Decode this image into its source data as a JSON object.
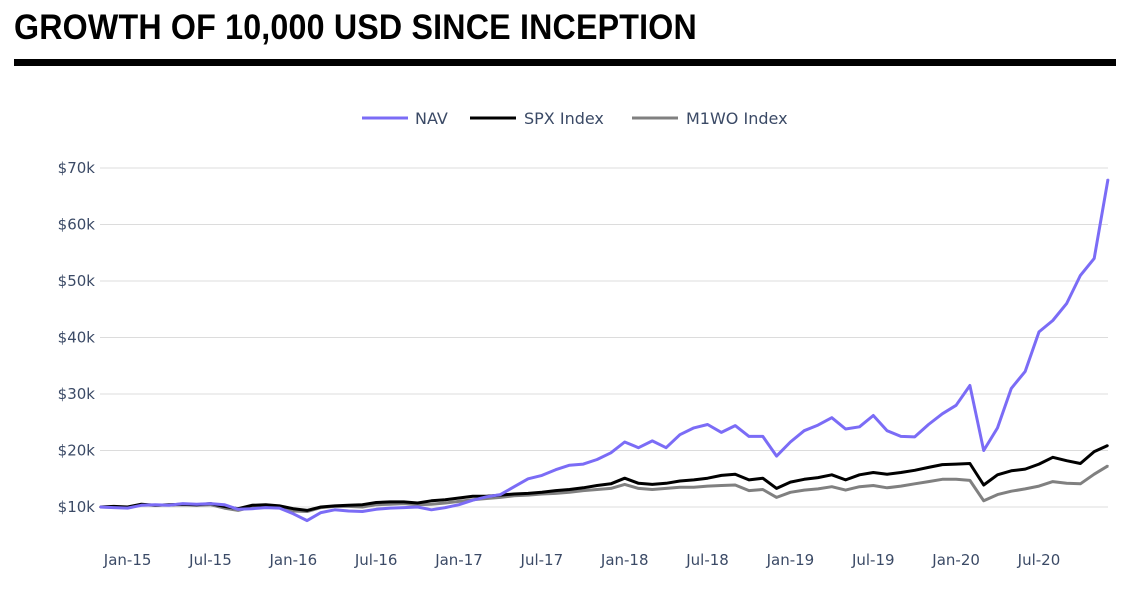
{
  "header": {
    "title": "GROWTH OF 10,000 USD SINCE INCEPTION"
  },
  "chart_data": {
    "type": "line",
    "title": "GROWTH OF 10,000 USD SINCE INCEPTION",
    "xlabel": "",
    "ylabel": "",
    "ylim": [
      10000,
      70000
    ],
    "grid": true,
    "legend_position": "top-center",
    "x_tick_labels": [
      "Jan-15",
      "Jul-15",
      "Jan-16",
      "Jul-16",
      "Jan-17",
      "Jul-17",
      "Jan-18",
      "Jul-18",
      "Jan-19",
      "Jul-19",
      "Jan-20",
      "Jul-20"
    ],
    "y_ticks": [
      10000,
      20000,
      30000,
      40000,
      50000,
      60000,
      70000
    ],
    "y_tick_labels": [
      "$10k",
      "$20k",
      "$30k",
      "$40k",
      "$50k",
      "$60k",
      "$70k"
    ],
    "x": [
      "2014-11",
      "2014-12",
      "2015-01",
      "2015-02",
      "2015-03",
      "2015-04",
      "2015-05",
      "2015-06",
      "2015-07",
      "2015-08",
      "2015-09",
      "2015-10",
      "2015-11",
      "2015-12",
      "2016-01",
      "2016-02",
      "2016-03",
      "2016-04",
      "2016-05",
      "2016-06",
      "2016-07",
      "2016-08",
      "2016-09",
      "2016-10",
      "2016-11",
      "2016-12",
      "2017-01",
      "2017-02",
      "2017-03",
      "2017-04",
      "2017-05",
      "2017-06",
      "2017-07",
      "2017-08",
      "2017-09",
      "2017-10",
      "2017-11",
      "2017-12",
      "2018-01",
      "2018-02",
      "2018-03",
      "2018-04",
      "2018-05",
      "2018-06",
      "2018-07",
      "2018-08",
      "2018-09",
      "2018-10",
      "2018-11",
      "2018-12",
      "2019-01",
      "2019-02",
      "2019-03",
      "2019-04",
      "2019-05",
      "2019-06",
      "2019-07",
      "2019-08",
      "2019-09",
      "2019-10",
      "2019-11",
      "2019-12",
      "2020-01",
      "2020-02",
      "2020-03",
      "2020-04",
      "2020-05",
      "2020-06",
      "2020-07",
      "2020-08",
      "2020-09",
      "2020-10",
      "2020-11",
      "2020-12"
    ],
    "series": [
      {
        "name": "NAV",
        "color": "#7b6cf6",
        "values": [
          10000,
          9900,
          9800,
          10300,
          10400,
          10300,
          10600,
          10500,
          10600,
          10400,
          9600,
          9700,
          9900,
          9800,
          8800,
          7600,
          9000,
          9500,
          9300,
          9200,
          9600,
          9800,
          9900,
          10000,
          9500,
          9900,
          10400,
          11200,
          11800,
          12200,
          13600,
          15000,
          15600,
          16600,
          17400,
          17600,
          18400,
          19600,
          21500,
          20500,
          21700,
          20500,
          22800,
          24000,
          24600,
          23200,
          24400,
          22500,
          22500,
          19000,
          21500,
          23500,
          24500,
          25800,
          23800,
          24200,
          26200,
          23500,
          22500,
          22400,
          24600,
          26500,
          28000,
          31500,
          20000,
          24000,
          31000,
          34000,
          41000,
          43000,
          46000,
          51000,
          54000,
          68000
        ]
      },
      {
        "name": "SPX Index",
        "color": "#000000",
        "values": [
          10000,
          10100,
          10000,
          10500,
          10300,
          10400,
          10500,
          10400,
          10600,
          10100,
          9700,
          10300,
          10400,
          10200,
          9700,
          9400,
          10000,
          10200,
          10300,
          10400,
          10800,
          10900,
          10900,
          10700,
          11100,
          11300,
          11600,
          11900,
          11900,
          12100,
          12300,
          12400,
          12600,
          12900,
          13100,
          13400,
          13800,
          14100,
          15100,
          14200,
          14000,
          14200,
          14600,
          14800,
          15100,
          15600,
          15800,
          14800,
          15100,
          13300,
          14400,
          14900,
          15200,
          15700,
          14800,
          15700,
          16100,
          15800,
          16100,
          16500,
          17000,
          17500,
          17600,
          17700,
          13900,
          15700,
          16400,
          16700,
          17600,
          18800,
          18200,
          17700,
          19800,
          20900
        ]
      },
      {
        "name": "M1WO Index",
        "color": "#808080",
        "values": [
          10000,
          9950,
          9900,
          10400,
          10300,
          10350,
          10400,
          10300,
          10400,
          9800,
          9400,
          10000,
          10050,
          9900,
          9300,
          9200,
          9900,
          10100,
          10100,
          10000,
          10400,
          10500,
          10600,
          10400,
          10500,
          10700,
          11000,
          11300,
          11500,
          11700,
          12000,
          12100,
          12300,
          12400,
          12600,
          12900,
          13100,
          13300,
          14000,
          13300,
          13100,
          13300,
          13500,
          13500,
          13700,
          13800,
          13900,
          12900,
          13100,
          11700,
          12600,
          13000,
          13200,
          13600,
          13000,
          13600,
          13800,
          13400,
          13700,
          14100,
          14500,
          14900,
          14900,
          14700,
          11100,
          12200,
          12800,
          13200,
          13700,
          14500,
          14200,
          14100,
          15800,
          17300
        ]
      }
    ]
  }
}
